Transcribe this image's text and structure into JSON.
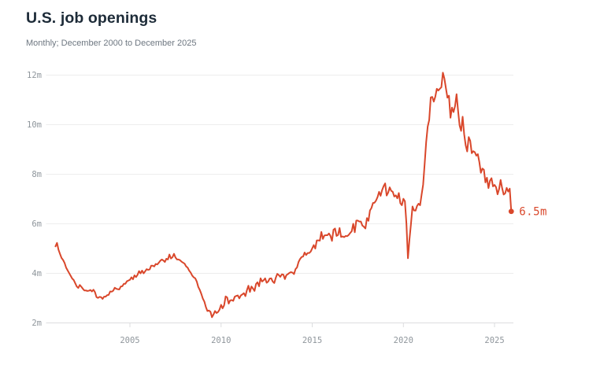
{
  "header": {
    "title": "U.S. job openings",
    "subtitle": "Monthly; December 2000 to December 2025"
  },
  "chart": {
    "colors": {
      "line": "#d9472b",
      "grid": "#ededed",
      "axis": "#dcdddf",
      "tick_label": "#8f969c",
      "title": "#1d2b38",
      "subtitle": "#6e7781"
    }
  },
  "chart_data": {
    "type": "line",
    "title": "U.S. job openings",
    "subtitle": "Monthly; December 2000 to December 2025",
    "unit": "millions of job openings",
    "x_start": 2000.9167,
    "x_step_months": 1,
    "xlim": [
      2000.9167,
      2025.9167
    ],
    "ylim": [
      2,
      12.4
    ],
    "grid": true,
    "x_ticks": [
      {
        "value": 2005,
        "label": "2005"
      },
      {
        "value": 2010,
        "label": "2010"
      },
      {
        "value": 2015,
        "label": "2015"
      },
      {
        "value": 2020,
        "label": "2020"
      },
      {
        "value": 2025,
        "label": "2025"
      }
    ],
    "y_ticks": [
      {
        "value": 2,
        "label": "2m"
      },
      {
        "value": 4,
        "label": "4m"
      },
      {
        "value": 6,
        "label": "6m"
      },
      {
        "value": 8,
        "label": "8m"
      },
      {
        "value": 10,
        "label": "10m"
      },
      {
        "value": 12,
        "label": "12m"
      }
    ],
    "annotation": {
      "x": 2025.9167,
      "y": 6.5,
      "label": "6.5m"
    },
    "series": [
      {
        "name": "Job openings (millions)",
        "values": [
          5.09,
          5.23,
          4.95,
          4.78,
          4.62,
          4.54,
          4.42,
          4.23,
          4.12,
          4.01,
          3.9,
          3.79,
          3.73,
          3.6,
          3.47,
          3.41,
          3.53,
          3.46,
          3.38,
          3.31,
          3.31,
          3.29,
          3.3,
          3.33,
          3.27,
          3.34,
          3.24,
          3.04,
          3.01,
          3.05,
          3.04,
          2.97,
          3.06,
          3.06,
          3.12,
          3.13,
          3.27,
          3.26,
          3.3,
          3.42,
          3.38,
          3.36,
          3.35,
          3.47,
          3.48,
          3.58,
          3.58,
          3.68,
          3.71,
          3.74,
          3.84,
          3.76,
          3.92,
          3.85,
          3.94,
          4.09,
          4.0,
          4.11,
          4.0,
          4.08,
          4.17,
          4.14,
          4.16,
          4.31,
          4.31,
          4.28,
          4.38,
          4.36,
          4.43,
          4.51,
          4.56,
          4.52,
          4.46,
          4.59,
          4.56,
          4.76,
          4.6,
          4.65,
          4.79,
          4.64,
          4.56,
          4.56,
          4.53,
          4.47,
          4.43,
          4.39,
          4.28,
          4.23,
          4.11,
          4.03,
          3.91,
          3.84,
          3.8,
          3.67,
          3.45,
          3.33,
          3.17,
          2.98,
          2.86,
          2.64,
          2.48,
          2.5,
          2.45,
          2.23,
          2.34,
          2.48,
          2.4,
          2.44,
          2.54,
          2.73,
          2.59,
          2.71,
          3.07,
          3.03,
          2.78,
          2.91,
          2.92,
          2.89,
          3.06,
          3.09,
          3.11,
          2.99,
          3.11,
          3.15,
          3.2,
          3.08,
          3.32,
          3.5,
          3.25,
          3.47,
          3.39,
          3.29,
          3.57,
          3.64,
          3.48,
          3.8,
          3.67,
          3.72,
          3.8,
          3.62,
          3.67,
          3.79,
          3.8,
          3.67,
          3.61,
          3.82,
          3.98,
          3.93,
          3.86,
          3.96,
          3.95,
          3.77,
          3.93,
          3.97,
          4.02,
          4.05,
          4.03,
          3.97,
          4.17,
          4.24,
          4.46,
          4.58,
          4.66,
          4.68,
          4.84,
          4.74,
          4.82,
          4.82,
          4.88,
          5.01,
          5.14,
          5.0,
          5.33,
          5.33,
          5.32,
          5.67,
          5.39,
          5.53,
          5.54,
          5.54,
          5.61,
          5.51,
          5.31,
          5.76,
          5.81,
          5.51,
          5.55,
          5.83,
          5.47,
          5.49,
          5.46,
          5.51,
          5.5,
          5.55,
          5.63,
          5.7,
          6.0,
          5.66,
          6.13,
          6.13,
          6.09,
          6.09,
          5.93,
          5.88,
          5.81,
          6.23,
          6.12,
          6.54,
          6.64,
          6.84,
          6.85,
          6.94,
          7.08,
          7.29,
          7.13,
          7.36,
          7.52,
          7.63,
          7.14,
          7.26,
          7.47,
          7.33,
          7.29,
          7.1,
          7.15,
          7.03,
          7.24,
          6.83,
          6.75,
          7.01,
          6.91,
          6.01,
          4.61,
          5.37,
          6.0,
          6.7,
          6.54,
          6.53,
          6.72,
          6.81,
          6.75,
          7.18,
          7.58,
          8.42,
          9.3,
          9.92,
          10.19,
          11.1,
          11.12,
          10.93,
          11.13,
          11.45,
          11.38,
          11.45,
          11.51,
          12.1,
          11.86,
          11.47,
          11.09,
          11.17,
          10.28,
          10.69,
          10.51,
          10.75,
          11.23,
          10.56,
          9.97,
          9.75,
          10.32,
          9.62,
          9.17,
          8.92,
          9.5,
          9.35,
          8.85,
          8.93,
          8.89,
          8.75,
          8.81,
          8.49,
          8.06,
          8.23,
          8.18,
          7.67,
          7.86,
          7.44,
          7.74,
          7.84,
          7.51,
          7.57,
          7.48,
          7.19,
          7.4,
          7.77,
          7.44,
          7.18,
          7.23,
          7.45,
          7.3,
          7.42,
          6.5
        ]
      }
    ],
    "legend": null
  }
}
